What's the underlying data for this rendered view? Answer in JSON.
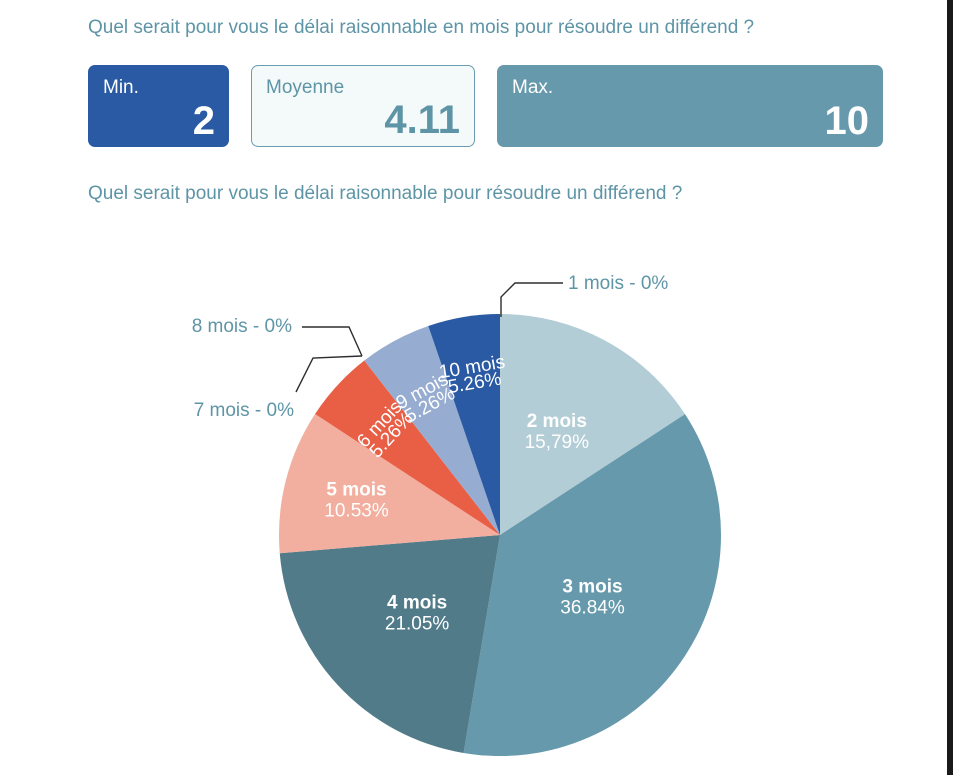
{
  "questions": {
    "q1": "Quel serait pour vous le délai raisonnable en mois pour résoudre un différend ?",
    "q2": "Quel serait pour vous le délai raisonnable pour résoudre un différend ?"
  },
  "stats": {
    "min": {
      "label": "Min.",
      "value": "2"
    },
    "mean": {
      "label": "Moyenne",
      "value": "4.11"
    },
    "max": {
      "label": "Max.",
      "value": "10"
    }
  },
  "colors": {
    "accent_text": "#5e95a6",
    "min_box": "#2a5aa3",
    "max_box": "#6599ab"
  },
  "chart_data": {
    "type": "pie",
    "title": "",
    "slices": [
      {
        "label": "2 mois",
        "value": 15.79,
        "value_label": "15,79%",
        "color": "#b3cdd6"
      },
      {
        "label": "3 mois",
        "value": 36.84,
        "value_label": "36.84%",
        "color": "#6599ab"
      },
      {
        "label": "4 mois",
        "value": 21.05,
        "value_label": "21.05%",
        "color": "#517b89"
      },
      {
        "label": "5 mois",
        "value": 10.53,
        "value_label": "10.53%",
        "color": "#f2ae9e"
      },
      {
        "label": "6 mois",
        "value": 5.26,
        "value_label": "5.26%",
        "color": "#e85f45"
      },
      {
        "label": "9 mois",
        "value": 5.26,
        "value_label": "5.26%",
        "color": "#96acd1"
      },
      {
        "label": "10 mois",
        "value": 5.26,
        "value_label": "5.26%",
        "color": "#2a5aa3"
      }
    ],
    "zero_callouts": [
      {
        "id": "one",
        "text": "1 mois - 0%"
      },
      {
        "id": "eight",
        "text": "8 mois - 0%"
      },
      {
        "id": "seven",
        "text": "7 mois - 0%"
      }
    ]
  }
}
